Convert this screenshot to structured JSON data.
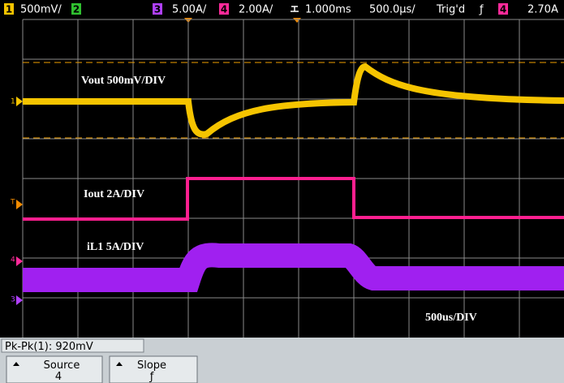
{
  "status_bar": {
    "ch1_label": "1",
    "ch1_scale": "500mV/",
    "ch2_label": "2",
    "ch3_label": "3",
    "ch3_scale": "5.00A/",
    "ch4_label": "4",
    "ch4_scale": "2.00A/",
    "delay": "1.000ms",
    "timebase": "500.0µs/",
    "trigger_status": "Trig'd",
    "trigger_slope": "ƒ",
    "trigger_source": "4",
    "trigger_level": "2.70A"
  },
  "annotations": {
    "vout": "Vout 500mV/DIV",
    "iout": "Iout 2A/DIV",
    "il1": "iL1 5A/DIV",
    "timebase": "500us/DIV"
  },
  "markers": {
    "ch1": "1",
    "trigger": "T",
    "ch4": "4",
    "ch3": "3"
  },
  "measurement": "Pk-Pk(1): 920mV",
  "softkeys": [
    {
      "label": "Source",
      "value": "4"
    },
    {
      "label": "Slope",
      "value": "ƒ"
    }
  ]
}
